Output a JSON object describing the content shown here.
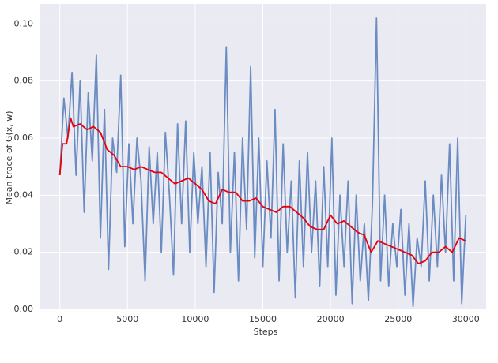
{
  "chart_data": {
    "type": "line",
    "x_label": "Steps",
    "y_label": "Mean trace of G(x, w)",
    "xlim": [
      -1500,
      31500
    ],
    "ylim": [
      0,
      0.107
    ],
    "xticks": [
      0,
      5000,
      10000,
      15000,
      20000,
      25000,
      30000
    ],
    "yticks": [
      {
        "value": 0,
        "label": "0.00"
      },
      {
        "value": 0.02,
        "label": "0.02"
      },
      {
        "value": 0.04,
        "label": "0.04"
      },
      {
        "value": 0.06,
        "label": "0.06"
      },
      {
        "value": 0.08,
        "label": "0.08"
      },
      {
        "value": 0.1,
        "label": "0.10"
      }
    ],
    "grid": true,
    "background": "#eaeaf2",
    "series": [
      {
        "color": "#6a8cc2",
        "x": [
          0,
          300,
          600,
          900,
          1200,
          1500,
          1800,
          2100,
          2400,
          2700,
          3000,
          3300,
          3600,
          3900,
          4200,
          4500,
          4800,
          5100,
          5400,
          5700,
          6000,
          6300,
          6600,
          6900,
          7200,
          7500,
          7800,
          8100,
          8400,
          8700,
          9000,
          9300,
          9600,
          9900,
          10200,
          10500,
          10800,
          11100,
          11400,
          11700,
          12000,
          12300,
          12600,
          12900,
          13200,
          13500,
          13800,
          14100,
          14400,
          14700,
          15000,
          15300,
          15600,
          15900,
          16200,
          16500,
          16800,
          17100,
          17400,
          17700,
          18000,
          18300,
          18600,
          18900,
          19200,
          19500,
          19800,
          20100,
          20400,
          20700,
          21000,
          21300,
          21600,
          21900,
          22200,
          22500,
          22800,
          23100,
          23400,
          23700,
          24000,
          24300,
          24600,
          24900,
          25200,
          25500,
          25800,
          26100,
          26400,
          26700,
          27000,
          27300,
          27600,
          27900,
          28200,
          28500,
          28800,
          29100,
          29400,
          29700,
          30000
        ],
        "values": [
          0.047,
          0.074,
          0.06,
          0.083,
          0.047,
          0.08,
          0.034,
          0.076,
          0.052,
          0.089,
          0.025,
          0.07,
          0.014,
          0.06,
          0.048,
          0.082,
          0.022,
          0.058,
          0.03,
          0.06,
          0.045,
          0.01,
          0.057,
          0.03,
          0.055,
          0.02,
          0.062,
          0.04,
          0.012,
          0.065,
          0.03,
          0.066,
          0.02,
          0.055,
          0.03,
          0.05,
          0.015,
          0.055,
          0.006,
          0.048,
          0.03,
          0.092,
          0.02,
          0.055,
          0.01,
          0.06,
          0.028,
          0.085,
          0.018,
          0.06,
          0.015,
          0.052,
          0.025,
          0.07,
          0.01,
          0.058,
          0.02,
          0.045,
          0.004,
          0.052,
          0.015,
          0.055,
          0.02,
          0.045,
          0.008,
          0.05,
          0.015,
          0.06,
          0.005,
          0.04,
          0.015,
          0.045,
          0.002,
          0.04,
          0.01,
          0.03,
          0.003,
          0.037,
          0.102,
          0.01,
          0.04,
          0.008,
          0.03,
          0.015,
          0.035,
          0.005,
          0.03,
          0.001,
          0.025,
          0.015,
          0.045,
          0.01,
          0.04,
          0.015,
          0.047,
          0.02,
          0.058,
          0.01,
          0.06,
          0.002,
          0.033
        ]
      },
      {
        "color": "#e8000b",
        "x": [
          0,
          200,
          500,
          800,
          1000,
          1500,
          2000,
          2500,
          3000,
          3500,
          4000,
          4500,
          5000,
          5500,
          6000,
          6500,
          7000,
          7500,
          8000,
          8500,
          9000,
          9500,
          10000,
          10500,
          11000,
          11500,
          12000,
          12500,
          13000,
          13500,
          14000,
          14500,
          15000,
          15500,
          16000,
          16500,
          17000,
          17500,
          18000,
          18500,
          19000,
          19500,
          20000,
          20500,
          21000,
          21500,
          22000,
          22500,
          23000,
          23500,
          24000,
          24500,
          25000,
          25500,
          26000,
          26500,
          27000,
          27500,
          28000,
          28500,
          29000,
          29500,
          30000
        ],
        "values": [
          0.047,
          0.058,
          0.058,
          0.067,
          0.064,
          0.065,
          0.063,
          0.064,
          0.062,
          0.056,
          0.054,
          0.05,
          0.05,
          0.049,
          0.05,
          0.049,
          0.048,
          0.048,
          0.046,
          0.044,
          0.045,
          0.046,
          0.044,
          0.042,
          0.038,
          0.037,
          0.042,
          0.041,
          0.041,
          0.038,
          0.038,
          0.039,
          0.036,
          0.035,
          0.034,
          0.036,
          0.036,
          0.034,
          0.032,
          0.029,
          0.028,
          0.028,
          0.033,
          0.03,
          0.031,
          0.029,
          0.027,
          0.026,
          0.02,
          0.024,
          0.023,
          0.022,
          0.021,
          0.02,
          0.019,
          0.016,
          0.017,
          0.02,
          0.02,
          0.022,
          0.02,
          0.025,
          0.024
        ]
      }
    ]
  }
}
